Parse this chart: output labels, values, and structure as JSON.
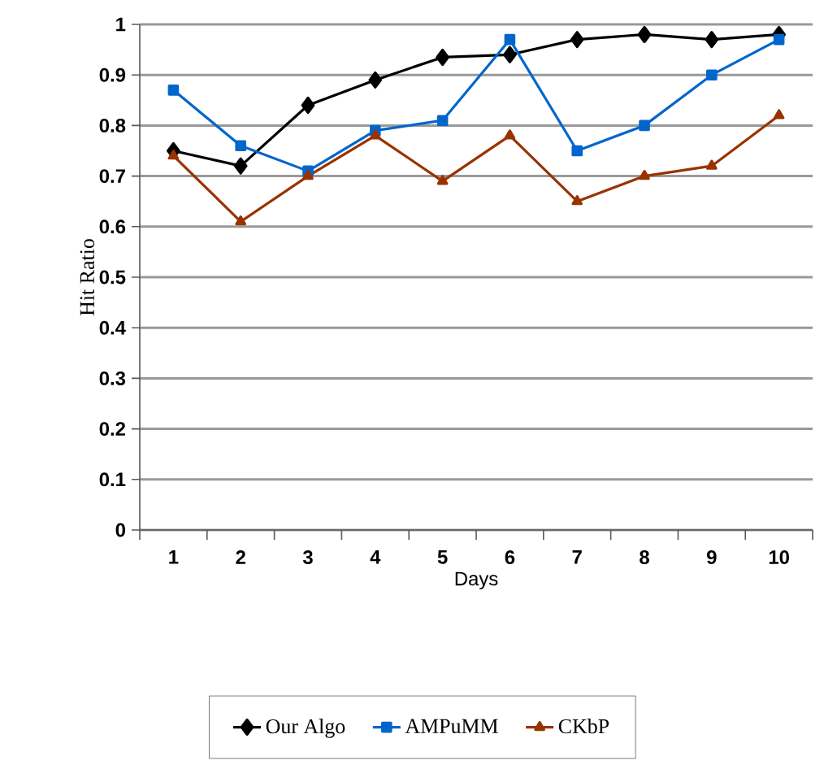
{
  "chart_data": {
    "type": "line",
    "xlabel": "Days",
    "ylabel": "Hit Ratio",
    "categories": [
      "1",
      "2",
      "3",
      "4",
      "5",
      "6",
      "7",
      "8",
      "9",
      "10"
    ],
    "series": [
      {
        "name": "Our Algo",
        "color": "#000000",
        "marker": "diamond",
        "values": [
          0.75,
          0.72,
          0.84,
          0.89,
          0.935,
          0.94,
          0.97,
          0.98,
          0.97,
          0.98
        ]
      },
      {
        "name": "AMPuMM",
        "color": "#0066cc",
        "marker": "square",
        "values": [
          0.87,
          0.76,
          0.71,
          0.79,
          0.81,
          0.97,
          0.75,
          0.8,
          0.9,
          0.97
        ]
      },
      {
        "name": "CKbP",
        "color": "#993300",
        "marker": "triangle",
        "values": [
          0.74,
          0.61,
          0.7,
          0.78,
          0.69,
          0.78,
          0.65,
          0.7,
          0.72,
          0.82
        ]
      }
    ],
    "ylim": [
      0,
      1
    ],
    "yticks": [
      0,
      0.1,
      0.2,
      0.3,
      0.4,
      0.5,
      0.6,
      0.7,
      0.8,
      0.9,
      1
    ],
    "grid": "y",
    "legend": "bottom",
    "line_style": "solid"
  }
}
